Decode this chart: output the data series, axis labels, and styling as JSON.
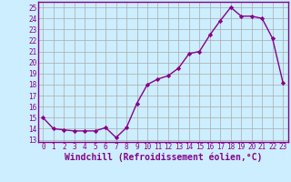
{
  "x": [
    0,
    1,
    2,
    3,
    4,
    5,
    6,
    7,
    8,
    9,
    10,
    11,
    12,
    13,
    14,
    15,
    16,
    17,
    18,
    19,
    20,
    21,
    22,
    23
  ],
  "y": [
    15,
    14,
    13.9,
    13.8,
    13.8,
    13.8,
    14.1,
    13.2,
    14.1,
    16.3,
    18.0,
    18.5,
    18.8,
    19.5,
    20.8,
    21.0,
    22.5,
    23.8,
    25.0,
    24.2,
    24.2,
    24.0,
    22.2,
    18.2
  ],
  "line_color": "#880088",
  "marker": "D",
  "markersize": 2.2,
  "linewidth": 1.0,
  "bg_color": "#cceeff",
  "grid_color": "#aaaaaa",
  "xlabel": "Windchill (Refroidissement éolien,°C)",
  "xlabel_color": "#880088",
  "tick_color": "#880088",
  "spine_color": "#880088",
  "xlim": [
    -0.5,
    23.5
  ],
  "ylim": [
    12.8,
    25.5
  ],
  "yticks": [
    13,
    14,
    15,
    16,
    17,
    18,
    19,
    20,
    21,
    22,
    23,
    24,
    25
  ],
  "xticks": [
    0,
    1,
    2,
    3,
    4,
    5,
    6,
    7,
    8,
    9,
    10,
    11,
    12,
    13,
    14,
    15,
    16,
    17,
    18,
    19,
    20,
    21,
    22,
    23
  ],
  "tick_fontsize": 5.5,
  "xlabel_fontsize": 7.0
}
